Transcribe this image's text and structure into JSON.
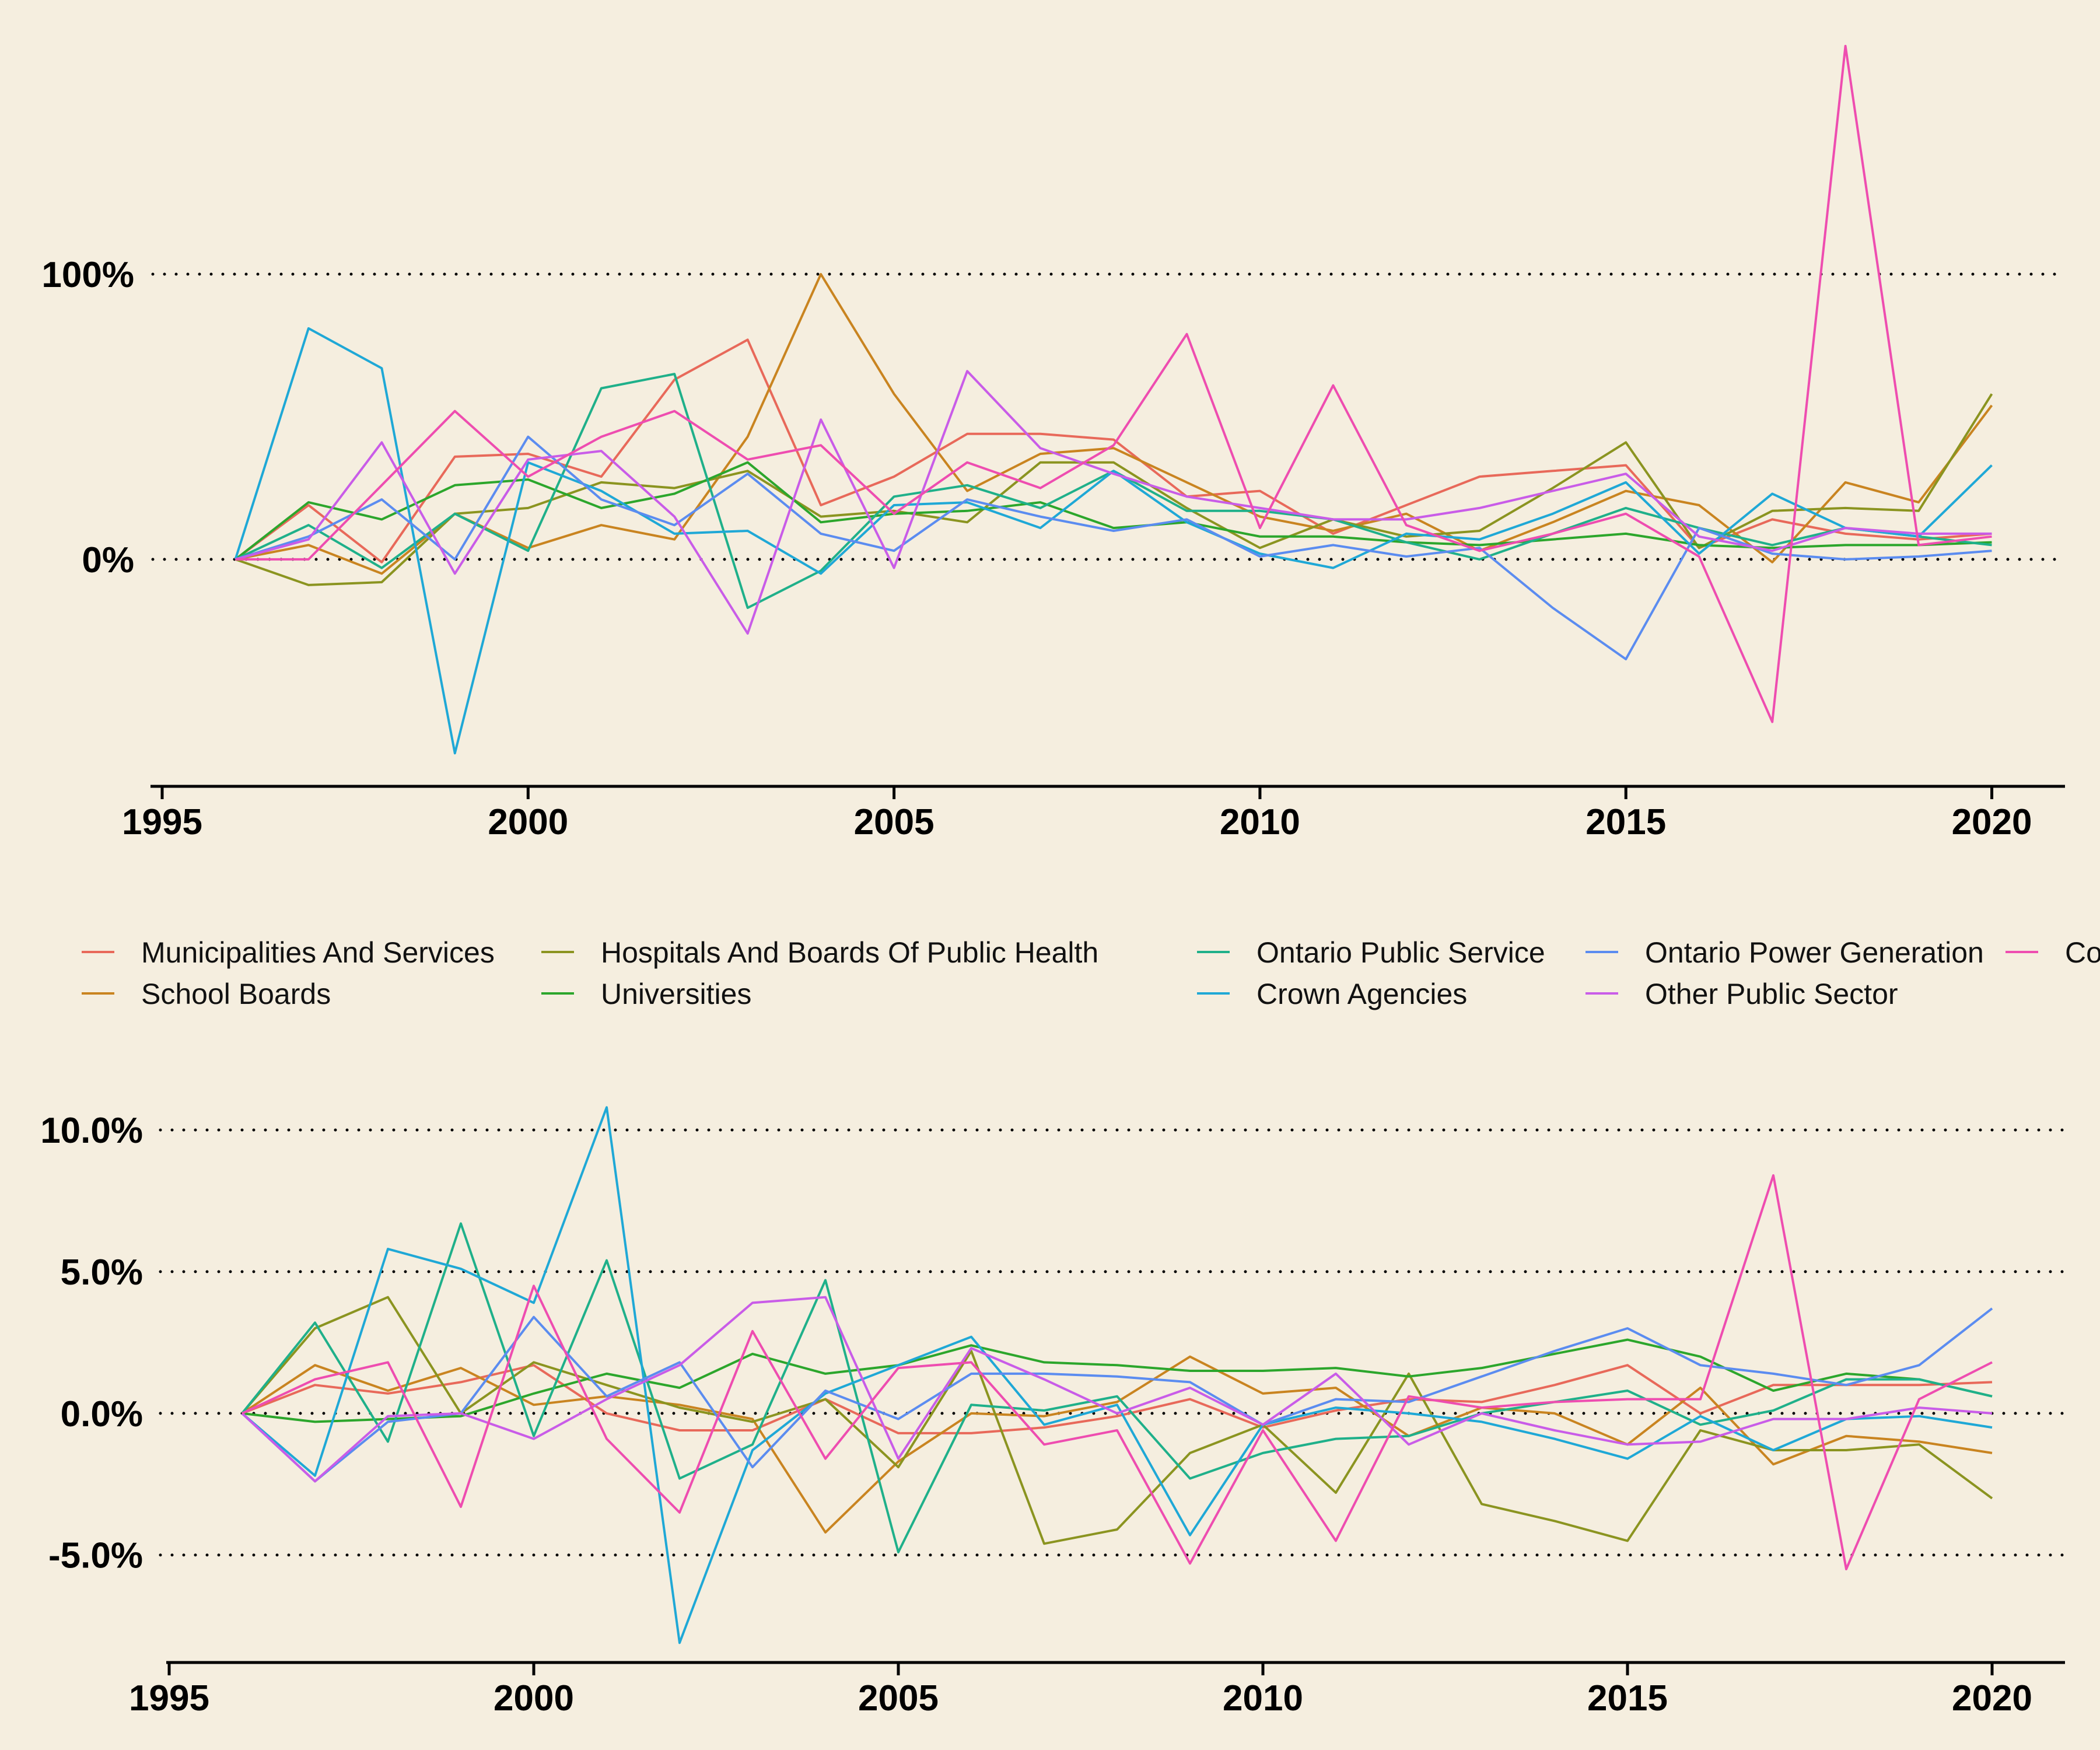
{
  "legend": {
    "items": [
      {
        "label": "Municipalities And Services",
        "color": "#e8695a"
      },
      {
        "label": "School Boards",
        "color": "#c98420"
      },
      {
        "label": "Hospitals And Boards Of Public Health",
        "color": "#8b9420"
      },
      {
        "label": "Universities",
        "color": "#2ca62c"
      },
      {
        "label": "Ontario Public Service",
        "color": "#1fb08a"
      },
      {
        "label": "Crown Agencies",
        "color": "#1fa8d6"
      },
      {
        "label": "Ontario Power Generation",
        "color": "#5b8cf0"
      },
      {
        "label": "Other Public Sector",
        "color": "#c95ce8"
      },
      {
        "label": "Coll",
        "color": "#ee4db0"
      }
    ]
  },
  "chart_data": [
    {
      "type": "line",
      "title": "",
      "xlabel": "",
      "ylabel": "",
      "xlim": [
        1995,
        2021
      ],
      "ylim": [
        -80,
        190
      ],
      "x_ticks": [
        1995,
        2000,
        2005,
        2010,
        2015,
        2020
      ],
      "x_tick_labels": [
        "1995",
        "2000",
        "2005",
        "2010",
        "2015",
        "2020"
      ],
      "y_ticks": [
        0,
        100
      ],
      "y_tick_labels": [
        "0%",
        "100%"
      ],
      "grid": "dotted horizontal at y ticks",
      "x": [
        1996,
        1997,
        1998,
        1999,
        2000,
        2001,
        2002,
        2003,
        2004,
        2005,
        2006,
        2007,
        2008,
        2009,
        2010,
        2011,
        2012,
        2013,
        2014,
        2015,
        2016,
        2017,
        2018,
        2019,
        2020
      ],
      "series": [
        {
          "name": "Municipalities And Services",
          "color": "#e8695a",
          "values": [
            0,
            19,
            -1,
            36,
            37,
            29,
            63,
            77,
            19,
            29,
            44,
            44,
            42,
            22,
            24,
            9,
            19,
            29,
            31,
            33,
            4,
            14,
            9,
            7,
            9
          ]
        },
        {
          "name": "School Boards",
          "color": "#c98420",
          "values": [
            0,
            5,
            -5,
            16,
            4,
            12,
            7,
            43,
            100,
            58,
            24,
            37,
            39,
            27,
            15,
            10,
            16,
            3,
            13,
            24,
            19,
            -1,
            27,
            20,
            54
          ]
        },
        {
          "name": "Hospitals And Boards Of Public Health",
          "color": "#8b9420",
          "values": [
            0,
            -9,
            -8,
            16,
            18,
            27,
            25,
            31,
            15,
            17,
            13,
            34,
            34,
            18,
            4,
            14,
            8,
            10,
            25,
            41,
            4,
            17,
            18,
            17,
            58
          ]
        },
        {
          "name": "Universities",
          "color": "#2ca62c",
          "values": [
            0,
            20,
            14,
            26,
            28,
            18,
            23,
            34,
            13,
            16,
            17,
            20,
            11,
            13,
            8,
            8,
            6,
            5,
            7,
            9,
            5,
            4,
            5,
            5,
            6
          ]
        },
        {
          "name": "Ontario Public Service",
          "color": "#1fb08a",
          "values": [
            0,
            12,
            -3,
            16,
            3,
            60,
            65,
            -17,
            -4,
            22,
            26,
            18,
            31,
            17,
            17,
            14,
            6,
            0,
            9,
            18,
            11,
            5,
            11,
            8,
            5
          ]
        },
        {
          "name": "Crown Agencies",
          "color": "#1fa8d6",
          "values": [
            0,
            81,
            67,
            -68,
            34,
            24,
            9,
            10,
            -5,
            19,
            20,
            11,
            31,
            13,
            2,
            -3,
            9,
            7,
            16,
            27,
            2,
            23,
            11,
            8,
            33
          ]
        },
        {
          "name": "Ontario Power Generation",
          "color": "#5b8cf0",
          "values": [
            0,
            8,
            21,
            0,
            43,
            21,
            12,
            30,
            9,
            3,
            21,
            15,
            10,
            14,
            1,
            5,
            1,
            4,
            -17,
            -35,
            11,
            2,
            0,
            1,
            3
          ]
        },
        {
          "name": "Other Public Sector",
          "color": "#c95ce8",
          "values": [
            0,
            7,
            41,
            -5,
            35,
            38,
            15,
            -26,
            49,
            -3,
            66,
            39,
            30,
            22,
            18,
            14,
            14,
            18,
            24,
            30,
            8,
            3,
            11,
            9,
            9
          ]
        },
        {
          "name": "Coll",
          "color": "#ee4db0",
          "values": [
            0,
            0,
            26,
            52,
            29,
            43,
            52,
            35,
            40,
            16,
            34,
            25,
            40,
            79,
            11,
            61,
            12,
            3,
            9,
            16,
            1,
            -57,
            180,
            5,
            8
          ]
        }
      ]
    },
    {
      "type": "line",
      "title": "",
      "xlabel": "",
      "ylabel": "",
      "xlim": [
        1995,
        2021
      ],
      "ylim": [
        -9,
        12
      ],
      "x_ticks": [
        1995,
        2000,
        2005,
        2010,
        2015,
        2020
      ],
      "x_tick_labels": [
        "1995",
        "2000",
        "2005",
        "2010",
        "2015",
        "2020"
      ],
      "y_ticks": [
        -5,
        0,
        5,
        10
      ],
      "y_tick_labels": [
        "-5.0%",
        "0.0%",
        "5.0%",
        "10.0%"
      ],
      "grid": "dotted horizontal at y ticks",
      "x": [
        1996,
        1997,
        1998,
        1999,
        2000,
        2001,
        2002,
        2003,
        2004,
        2005,
        2006,
        2007,
        2008,
        2009,
        2010,
        2011,
        2012,
        2013,
        2014,
        2015,
        2016,
        2017,
        2018,
        2019,
        2020
      ],
      "series": [
        {
          "name": "Municipalities And Services",
          "color": "#e8695a",
          "values": [
            0,
            1.0,
            0.7,
            1.1,
            1.7,
            0.0,
            -0.6,
            -0.6,
            0.5,
            -0.7,
            -0.7,
            -0.5,
            -0.1,
            0.5,
            -0.5,
            0.1,
            0.5,
            0.4,
            1.0,
            1.7,
            0.0,
            1.0,
            1.0,
            1.0,
            1.1
          ]
        },
        {
          "name": "School Boards",
          "color": "#c98420",
          "values": [
            0,
            1.7,
            0.8,
            1.6,
            0.3,
            0.6,
            0.3,
            -0.2,
            -4.2,
            -1.7,
            0.0,
            -0.1,
            0.4,
            2.0,
            0.7,
            0.9,
            -0.8,
            0.2,
            0.0,
            -1.1,
            0.9,
            -1.8,
            -0.8,
            -1.0,
            -1.4
          ]
        },
        {
          "name": "Hospitals And Boards Of Public Health",
          "color": "#8b9420",
          "values": [
            0,
            3.0,
            4.1,
            0.0,
            1.8,
            1.0,
            0.2,
            -0.3,
            0.5,
            -1.9,
            2.2,
            -4.6,
            -4.1,
            -1.4,
            -0.4,
            -2.8,
            1.4,
            -3.2,
            -3.8,
            -4.5,
            -0.6,
            -1.3,
            -1.3,
            -1.1,
            -3.0
          ]
        },
        {
          "name": "Universities",
          "color": "#2ca62c",
          "values": [
            0,
            -0.3,
            -0.2,
            -0.1,
            0.7,
            1.4,
            0.9,
            2.1,
            1.4,
            1.7,
            2.4,
            1.8,
            1.7,
            1.5,
            1.5,
            1.6,
            1.3,
            1.6,
            2.1,
            2.6,
            2.0,
            0.8,
            1.4,
            1.2,
            0.6
          ]
        },
        {
          "name": "Ontario Public Service",
          "color": "#1fb08a",
          "values": [
            0,
            3.2,
            -1.0,
            6.7,
            -0.8,
            5.4,
            -2.3,
            -1.1,
            4.7,
            -4.9,
            0.3,
            0.1,
            0.6,
            -2.3,
            -1.4,
            -0.9,
            -0.8,
            0.0,
            0.4,
            0.8,
            -0.4,
            0.1,
            1.2,
            1.2,
            0.6
          ]
        },
        {
          "name": "Crown Agencies",
          "color": "#1fa8d6",
          "values": [
            0,
            -2.2,
            5.8,
            5.1,
            3.9,
            10.8,
            -8.1,
            -1.3,
            0.7,
            1.7,
            2.7,
            -0.4,
            0.3,
            -4.3,
            -0.4,
            0.2,
            0.0,
            -0.3,
            -0.9,
            -1.6,
            -0.1,
            -1.3,
            -0.2,
            -0.1,
            -0.5
          ]
        },
        {
          "name": "Ontario Power Generation",
          "color": "#5b8cf0",
          "values": [
            0,
            -2.4,
            -0.3,
            0.0,
            3.4,
            0.6,
            1.8,
            -1.9,
            0.8,
            -0.2,
            1.4,
            1.4,
            1.3,
            1.1,
            -0.4,
            0.5,
            0.4,
            1.3,
            2.2,
            3.0,
            1.7,
            1.4,
            1.0,
            1.7,
            3.7
          ]
        },
        {
          "name": "Other Public Sector",
          "color": "#c95ce8",
          "values": [
            0,
            -2.4,
            -0.1,
            0.0,
            -0.9,
            0.5,
            1.7,
            3.9,
            4.1,
            -1.6,
            2.3,
            1.2,
            0.0,
            0.9,
            -0.4,
            1.4,
            -1.1,
            0.0,
            -0.6,
            -1.1,
            -1.0,
            -0.2,
            -0.2,
            0.2,
            0.0
          ]
        },
        {
          "name": "Coll",
          "color": "#ee4db0",
          "values": [
            0,
            1.2,
            1.8,
            -3.3,
            4.5,
            -0.9,
            -3.5,
            2.9,
            -1.6,
            1.6,
            1.8,
            -1.1,
            -0.6,
            -5.3,
            -0.6,
            -4.5,
            0.6,
            0.2,
            0.4,
            0.5,
            0.5,
            8.4,
            -5.5,
            0.5,
            1.8
          ]
        }
      ]
    }
  ]
}
